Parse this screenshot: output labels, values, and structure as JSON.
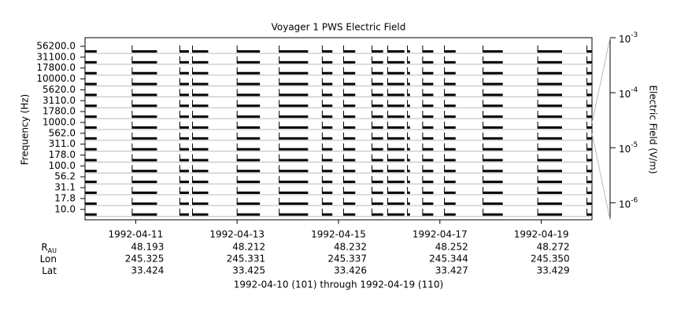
{
  "chart_data": {
    "type": "timeline",
    "title": "Voyager 1 PWS Electric Field",
    "ylabel": "Frequency (Hz)",
    "y2label": "Electric Field (V/m)",
    "categories": [
      "56200.0",
      "31100.0",
      "17800.0",
      "10000.0",
      "5620.0",
      "3110.0",
      "1780.0",
      "1000.0",
      "562.0",
      "311.0",
      "178.0",
      "100.0",
      "56.2",
      "31.1",
      "17.8",
      "10.0"
    ],
    "segments": [
      [
        0,
        0.23
      ],
      [
        0.93,
        1.42
      ],
      [
        1.87,
        2.05
      ],
      [
        2.12,
        2.43
      ],
      [
        3.0,
        3.45
      ],
      [
        3.83,
        4.4
      ],
      [
        4.68,
        4.88
      ],
      [
        5.1,
        5.33
      ],
      [
        5.66,
        5.88
      ],
      [
        5.97,
        6.3
      ],
      [
        6.36,
        6.41
      ],
      [
        6.66,
        6.87
      ],
      [
        7.09,
        7.31
      ],
      [
        7.85,
        8.24
      ],
      [
        8.93,
        9.41
      ],
      [
        9.9,
        10
      ]
    ],
    "color": "#000000",
    "xlim": [
      0,
      10
    ],
    "xticks": [
      {
        "value": 1,
        "label": "1992-04-11"
      },
      {
        "value": 3,
        "label": "1992-04-13"
      },
      {
        "value": 5,
        "label": "1992-04-15"
      },
      {
        "value": 7,
        "label": "1992-04-17"
      },
      {
        "value": 9,
        "label": "1992-04-19"
      }
    ],
    "y2log": true,
    "y2lim": [
      4.9e-07,
      0.001
    ],
    "y2ticks": [
      {
        "value": 0.001,
        "label": "10",
        "exponent": "-3"
      },
      {
        "value": 0.0001,
        "label": "10",
        "exponent": "-4"
      },
      {
        "value": 1e-05,
        "label": "10",
        "exponent": "-5"
      },
      {
        "value": 1e-06,
        "label": "10",
        "exponent": "-6"
      }
    ],
    "ephemeris": {
      "labels": [
        {
          "text": "R",
          "sub": "AU"
        },
        {
          "text": "Lon"
        },
        {
          "text": "Lat"
        }
      ],
      "rows": [
        [
          "48.193",
          "48.212",
          "48.232",
          "48.252",
          "48.272"
        ],
        [
          "245.325",
          "245.331",
          "245.337",
          "245.344",
          "245.350"
        ],
        [
          "33.424",
          "33.425",
          "33.426",
          "33.427",
          "33.429"
        ]
      ]
    },
    "footer": "1992-04-10 (101) through 1992-04-19 (110)"
  }
}
